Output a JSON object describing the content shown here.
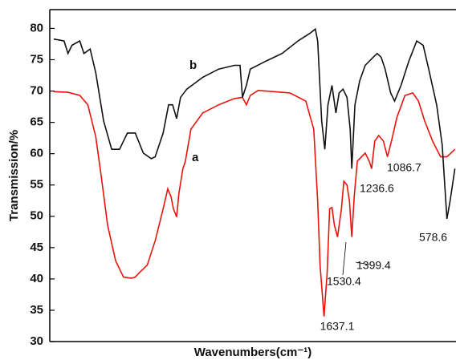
{
  "chart_data": {
    "type": "line",
    "xlabel": "Wavenumbers(cm⁻¹)",
    "ylabel": "Transmission/%",
    "xlim": [
      4000,
      500
    ],
    "ylim": [
      30,
      83
    ],
    "yticks": [
      30,
      35,
      40,
      45,
      50,
      55,
      60,
      65,
      70,
      75,
      80
    ],
    "series": [
      {
        "name": "a",
        "color": "#e8140c",
        "x": [
          3966,
          3843,
          3741,
          3672,
          3604,
          3556,
          3502,
          3433,
          3365,
          3297,
          3263,
          3228,
          3160,
          3092,
          3023,
          2983,
          2955,
          2935,
          2907,
          2887,
          2853,
          2832,
          2784,
          2682,
          2545,
          2409,
          2340,
          2306,
          2272,
          2204,
          2067,
          1931,
          1794,
          1726,
          1692,
          1671,
          1637,
          1610,
          1589,
          1569,
          1548,
          1521,
          1487,
          1466,
          1439,
          1418,
          1398,
          1377,
          1350,
          1282,
          1248,
          1227,
          1200,
          1166,
          1125,
          1091,
          1056,
          1009,
          940,
          872,
          824,
          770,
          701,
          633,
          578,
          510
        ],
        "values": [
          69.9,
          69.8,
          69.3,
          67.8,
          62.7,
          56.3,
          48.6,
          42.9,
          40.3,
          40.1,
          40.3,
          41.0,
          42.2,
          46.1,
          51.2,
          54.4,
          53.1,
          51.2,
          49.9,
          53.7,
          57.6,
          58.8,
          63.9,
          66.5,
          67.8,
          68.8,
          69.0,
          67.8,
          69.3,
          70.1,
          69.9,
          69.7,
          68.4,
          63.9,
          52.4,
          42.2,
          34.0,
          41.0,
          51.2,
          51.4,
          48.6,
          46.7,
          51.2,
          55.6,
          55.0,
          52.4,
          46.7,
          53.1,
          58.8,
          60.1,
          58.8,
          57.6,
          62.0,
          62.9,
          62.0,
          59.5,
          62.0,
          65.8,
          69.3,
          69.7,
          68.4,
          65.2,
          62.0,
          59.5,
          59.5,
          60.7
        ]
      },
      {
        "name": "b",
        "color": "#111111",
        "x": [
          3966,
          3877,
          3843,
          3809,
          3741,
          3706,
          3652,
          3604,
          3536,
          3467,
          3399,
          3331,
          3263,
          3194,
          3126,
          3092,
          3023,
          2976,
          2942,
          2907,
          2873,
          2819,
          2682,
          2545,
          2409,
          2361,
          2340,
          2306,
          2272,
          2136,
          1999,
          1862,
          1760,
          1712,
          1692,
          1657,
          1630,
          1603,
          1569,
          1535,
          1507,
          1473,
          1439,
          1412,
          1398,
          1371,
          1330,
          1282,
          1214,
          1179,
          1145,
          1111,
          1063,
          1029,
          974,
          906,
          838,
          783,
          735,
          667,
          619,
          578,
          551,
          510
        ],
        "values": [
          78.3,
          78.0,
          76.0,
          77.3,
          78.0,
          76.0,
          76.7,
          72.9,
          65.2,
          60.7,
          60.7,
          63.3,
          63.3,
          60.1,
          59.2,
          59.5,
          63.3,
          67.8,
          67.8,
          65.6,
          69.0,
          70.3,
          72.2,
          73.5,
          74.1,
          74.1,
          69.0,
          70.9,
          73.5,
          74.8,
          76.0,
          78.0,
          79.2,
          79.9,
          78.0,
          65.2,
          60.7,
          67.8,
          70.9,
          66.5,
          69.7,
          70.3,
          69.0,
          63.9,
          57.6,
          67.8,
          71.6,
          74.1,
          75.4,
          76.0,
          75.4,
          73.5,
          69.7,
          68.4,
          70.9,
          74.8,
          78.0,
          77.3,
          73.5,
          67.8,
          61.4,
          49.6,
          52.4,
          57.6
        ]
      }
    ],
    "annotations": [
      "1637.1",
      "1530.4",
      "1399.4",
      "1236.6",
      "1086.7",
      "578.6"
    ]
  }
}
